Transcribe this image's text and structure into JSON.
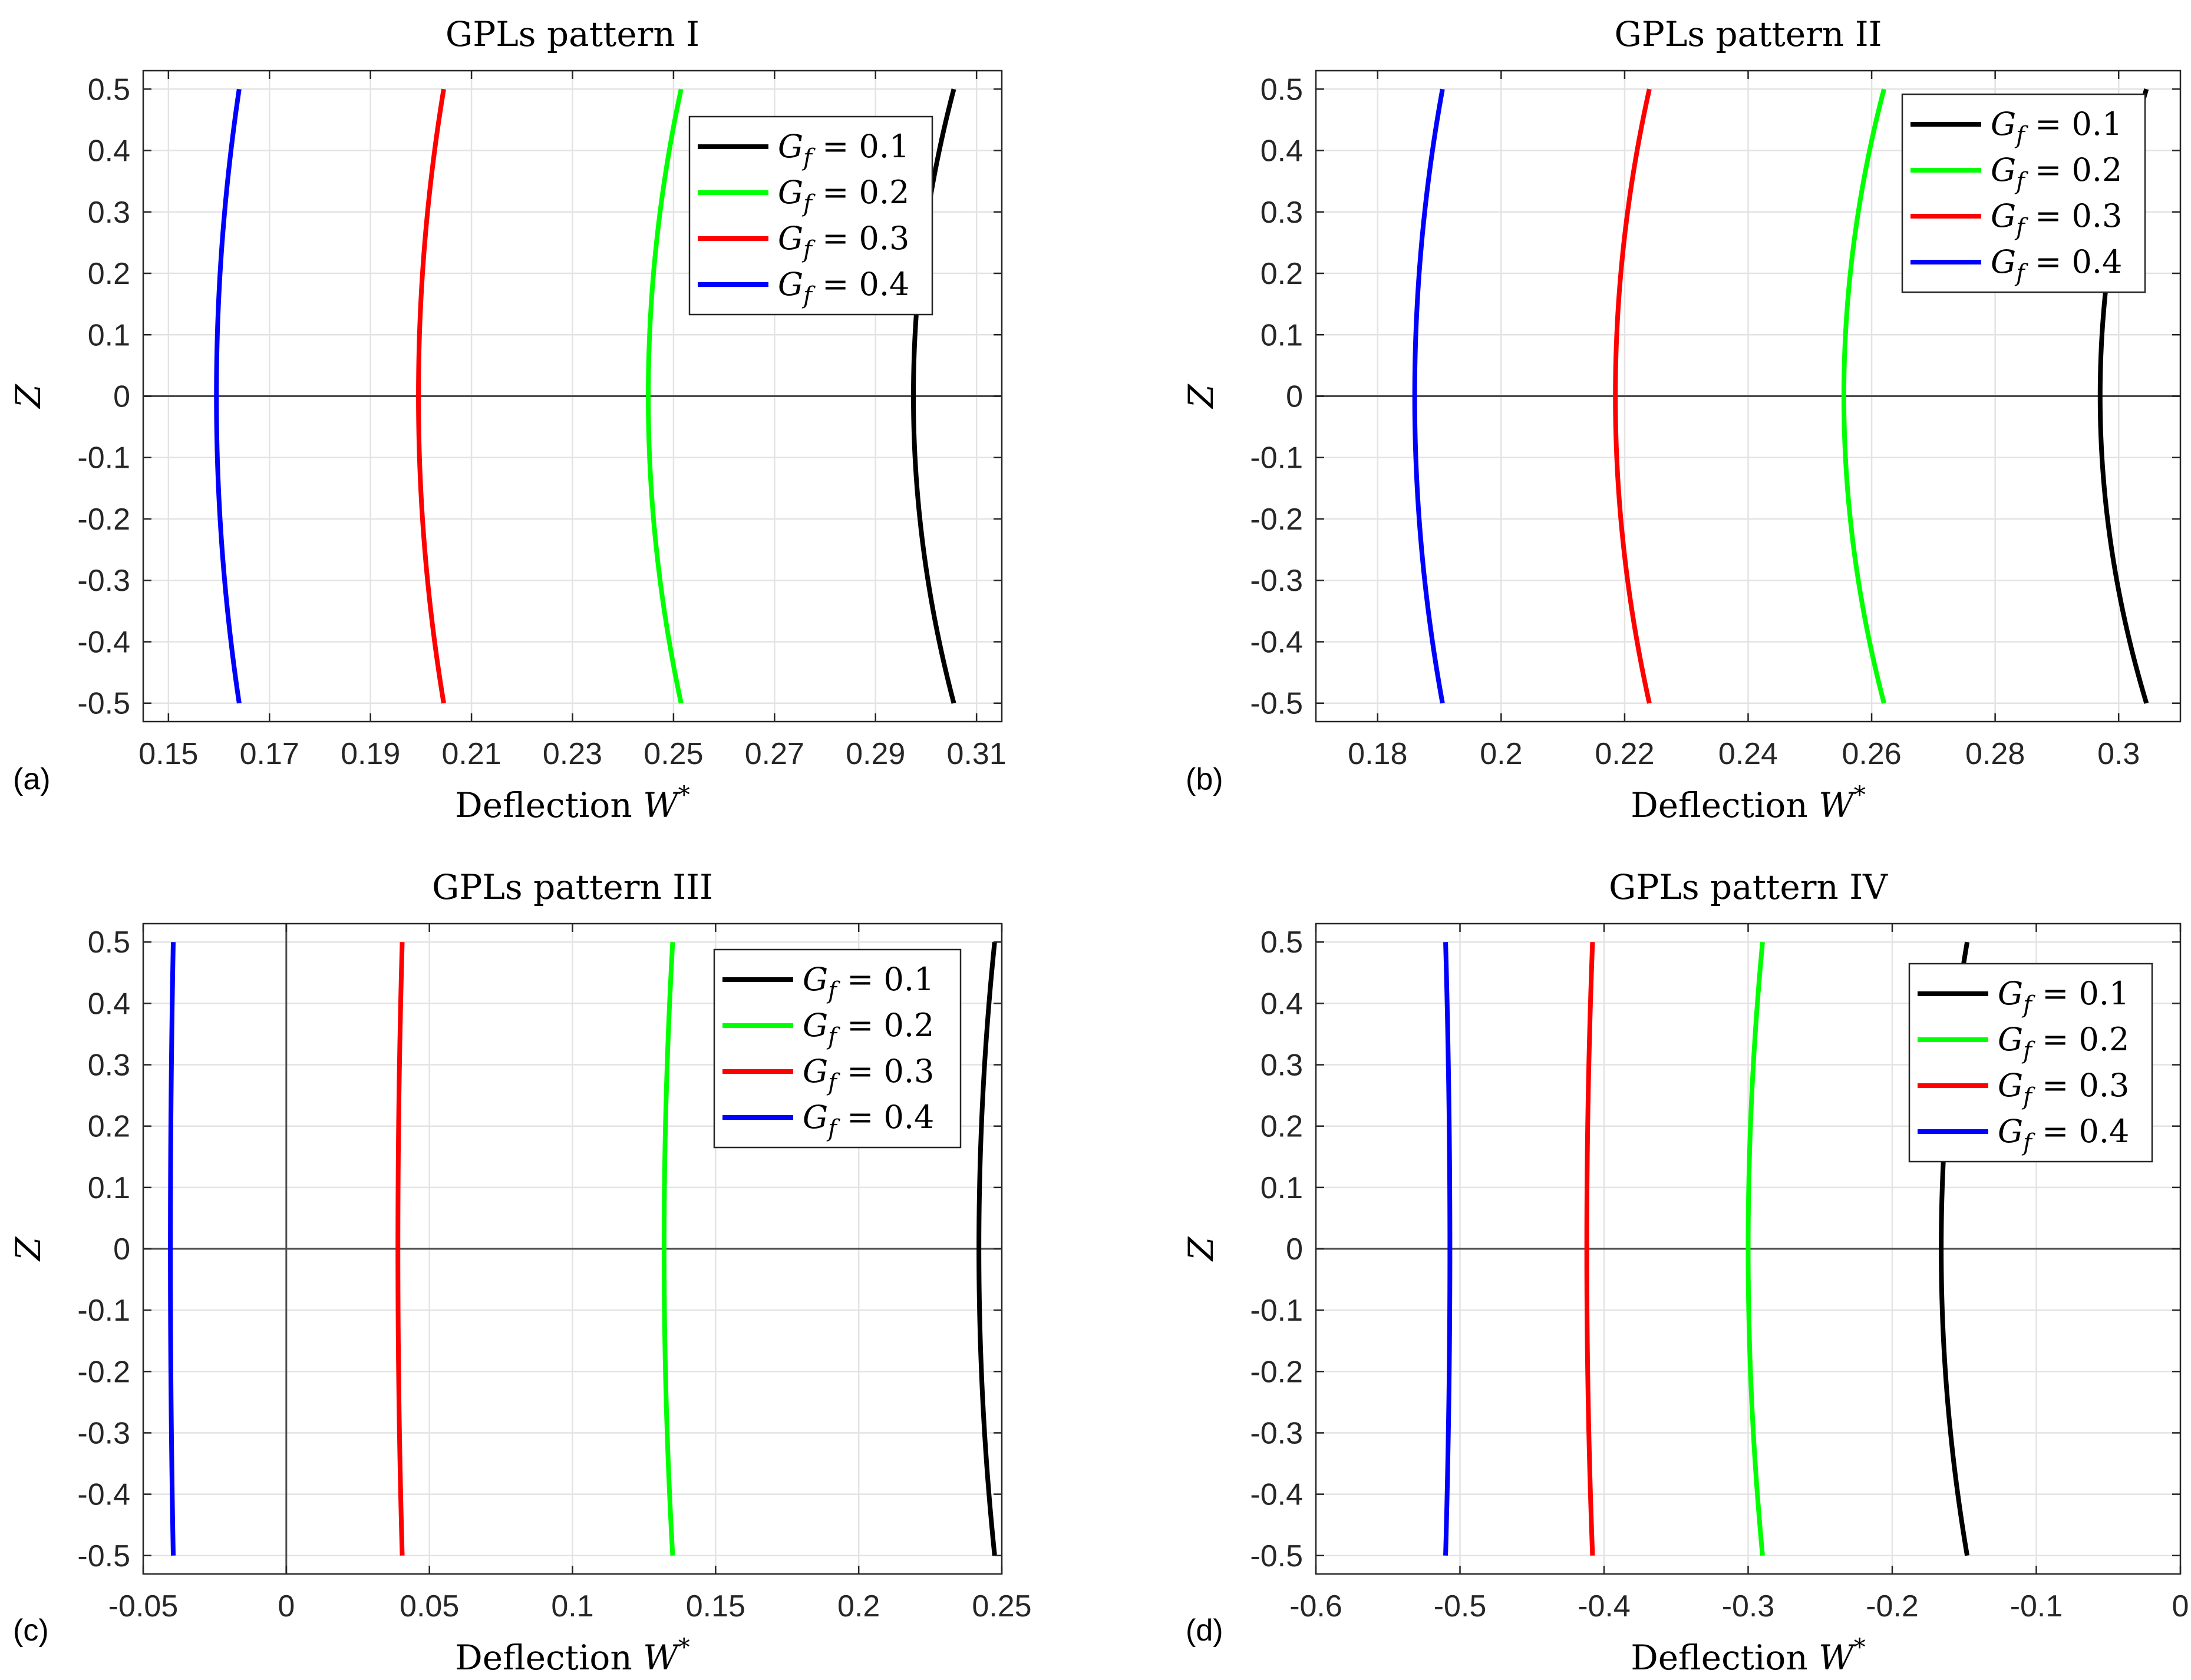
{
  "figure": {
    "subplot_count": 4
  },
  "chart_data": [
    {
      "id": "a",
      "panel_label": "(a)",
      "type": "line",
      "title": "GPLs pattern I",
      "xlabel": "Deflection W*",
      "xlabel_prefix": "Deflection ",
      "xlabel_var": "W",
      "xlabel_sup": "*",
      "ylabel": "Z",
      "xlim": [
        0.145,
        0.315
      ],
      "ylim": [
        -0.53,
        0.53
      ],
      "xticks": [
        0.15,
        0.17,
        0.19,
        0.21,
        0.23,
        0.25,
        0.27,
        0.29,
        0.31
      ],
      "xtick_labels": [
        "0.15",
        "0.17",
        "0.19",
        "0.21",
        "0.23",
        "0.25",
        "0.27",
        "0.29",
        "0.31"
      ],
      "yticks": [
        0.5,
        0.4,
        0.3,
        0.2,
        0.1,
        0,
        -0.1,
        -0.2,
        -0.3,
        -0.4,
        -0.5
      ],
      "ytick_labels": [
        "0.5",
        "0.4",
        "0.3",
        "0.2",
        "0.1",
        "0",
        "-0.1",
        "-0.2",
        "-0.3",
        "-0.4",
        "-0.5"
      ],
      "grid": true,
      "zero_lines": {
        "horizontal": true,
        "vertical": false
      },
      "legend_position": "top-right",
      "series": [
        {
          "name": "G_f = 0.1",
          "legend_value": "0.1",
          "color": "#000000",
          "center": 0.2975,
          "edge": 0.3055
        },
        {
          "name": "G_f = 0.2",
          "legend_value": "0.2",
          "color": "#00ff00",
          "center": 0.245,
          "edge": 0.2515
        },
        {
          "name": "G_f = 0.3",
          "legend_value": "0.3",
          "color": "#ff0000",
          "center": 0.1995,
          "edge": 0.2045
        },
        {
          "name": "G_f = 0.4",
          "legend_value": "0.4",
          "color": "#0000ff",
          "center": 0.1595,
          "edge": 0.164
        }
      ]
    },
    {
      "id": "b",
      "panel_label": "(b)",
      "type": "line",
      "title": "GPLs pattern II",
      "xlabel": "Deflection W*",
      "xlabel_prefix": "Deflection ",
      "xlabel_var": "W",
      "xlabel_sup": "*",
      "ylabel": "Z",
      "xlim": [
        0.17,
        0.31
      ],
      "ylim": [
        -0.53,
        0.53
      ],
      "xticks": [
        0.18,
        0.2,
        0.22,
        0.24,
        0.26,
        0.28,
        0.3
      ],
      "xtick_labels": [
        "0.18",
        "0.2",
        "0.22",
        "0.24",
        "0.26",
        "0.28",
        "0.3"
      ],
      "yticks": [
        0.5,
        0.4,
        0.3,
        0.2,
        0.1,
        0,
        -0.1,
        -0.2,
        -0.3,
        -0.4,
        -0.5
      ],
      "ytick_labels": [
        "0.5",
        "0.4",
        "0.3",
        "0.2",
        "0.1",
        "0",
        "-0.1",
        "-0.2",
        "-0.3",
        "-0.4",
        "-0.5"
      ],
      "grid": true,
      "zero_lines": {
        "horizontal": true,
        "vertical": false
      },
      "legend_position": "top-right",
      "series": [
        {
          "name": "G_f = 0.1",
          "legend_value": "0.1",
          "color": "#000000",
          "center": 0.297,
          "edge": 0.3045
        },
        {
          "name": "G_f = 0.2",
          "legend_value": "0.2",
          "color": "#00ff00",
          "center": 0.2555,
          "edge": 0.262
        },
        {
          "name": "G_f = 0.3",
          "legend_value": "0.3",
          "color": "#ff0000",
          "center": 0.2185,
          "edge": 0.224
        },
        {
          "name": "G_f = 0.4",
          "legend_value": "0.4",
          "color": "#0000ff",
          "center": 0.186,
          "edge": 0.1905
        }
      ]
    },
    {
      "id": "c",
      "panel_label": "(c)",
      "type": "line",
      "title": "GPLs pattern III",
      "xlabel": "Deflection W*",
      "xlabel_prefix": "Deflection ",
      "xlabel_var": "W",
      "xlabel_sup": "*",
      "ylabel": "Z",
      "xlim": [
        -0.05,
        0.25
      ],
      "ylim": [
        -0.53,
        0.53
      ],
      "xticks": [
        -0.05,
        0,
        0.05,
        0.1,
        0.15,
        0.2,
        0.25
      ],
      "xtick_labels": [
        "-0.05",
        "0",
        "0.05",
        "0.1",
        "0.15",
        "0.2",
        "0.25"
      ],
      "yticks": [
        0.5,
        0.4,
        0.3,
        0.2,
        0.1,
        0,
        -0.1,
        -0.2,
        -0.3,
        -0.4,
        -0.5
      ],
      "ytick_labels": [
        "0.5",
        "0.4",
        "0.3",
        "0.2",
        "0.1",
        "0",
        "-0.1",
        "-0.2",
        "-0.3",
        "-0.4",
        "-0.5"
      ],
      "grid": true,
      "zero_lines": {
        "horizontal": true,
        "vertical": true
      },
      "legend_position": "top-right",
      "series": [
        {
          "name": "G_f = 0.1",
          "legend_value": "0.1",
          "color": "#000000",
          "center": 0.242,
          "edge": 0.2475
        },
        {
          "name": "G_f = 0.2",
          "legend_value": "0.2",
          "color": "#00ff00",
          "center": 0.132,
          "edge": 0.135
        },
        {
          "name": "G_f = 0.3",
          "legend_value": "0.3",
          "color": "#ff0000",
          "center": 0.039,
          "edge": 0.0405
        },
        {
          "name": "G_f = 0.4",
          "legend_value": "0.4",
          "color": "#0000ff",
          "center": -0.0405,
          "edge": -0.0395
        }
      ]
    },
    {
      "id": "d",
      "panel_label": "(d)",
      "type": "line",
      "title": "GPLs pattern IV",
      "xlabel": "Deflection W*",
      "xlabel_prefix": "Deflection ",
      "xlabel_var": "W",
      "xlabel_sup": "*",
      "ylabel": "Z",
      "xlim": [
        -0.6,
        0.0
      ],
      "ylim": [
        -0.53,
        0.53
      ],
      "xticks": [
        -0.6,
        -0.5,
        -0.4,
        -0.3,
        -0.2,
        -0.1,
        0
      ],
      "xtick_labels": [
        "-0.6",
        "-0.5",
        "-0.4",
        "-0.3",
        "-0.2",
        "-0.1",
        "0"
      ],
      "yticks": [
        0.5,
        0.4,
        0.3,
        0.2,
        0.1,
        0,
        -0.1,
        -0.2,
        -0.3,
        -0.4,
        -0.5
      ],
      "ytick_labels": [
        "0.5",
        "0.4",
        "0.3",
        "0.2",
        "0.1",
        "0",
        "-0.1",
        "-0.2",
        "-0.3",
        "-0.4",
        "-0.5"
      ],
      "grid": true,
      "zero_lines": {
        "horizontal": true,
        "vertical": false
      },
      "legend_position": "upper-right",
      "series": [
        {
          "name": "G_f = 0.1",
          "legend_value": "0.1",
          "color": "#000000",
          "center": -0.166,
          "edge": -0.148
        },
        {
          "name": "G_f = 0.2",
          "legend_value": "0.2",
          "color": "#00ff00",
          "center": -0.3,
          "edge": -0.29
        },
        {
          "name": "G_f = 0.3",
          "legend_value": "0.3",
          "color": "#ff0000",
          "center": -0.412,
          "edge": -0.408
        },
        {
          "name": "G_f = 0.4",
          "legend_value": "0.4",
          "color": "#0000ff",
          "center": -0.507,
          "edge": -0.51
        }
      ]
    }
  ]
}
